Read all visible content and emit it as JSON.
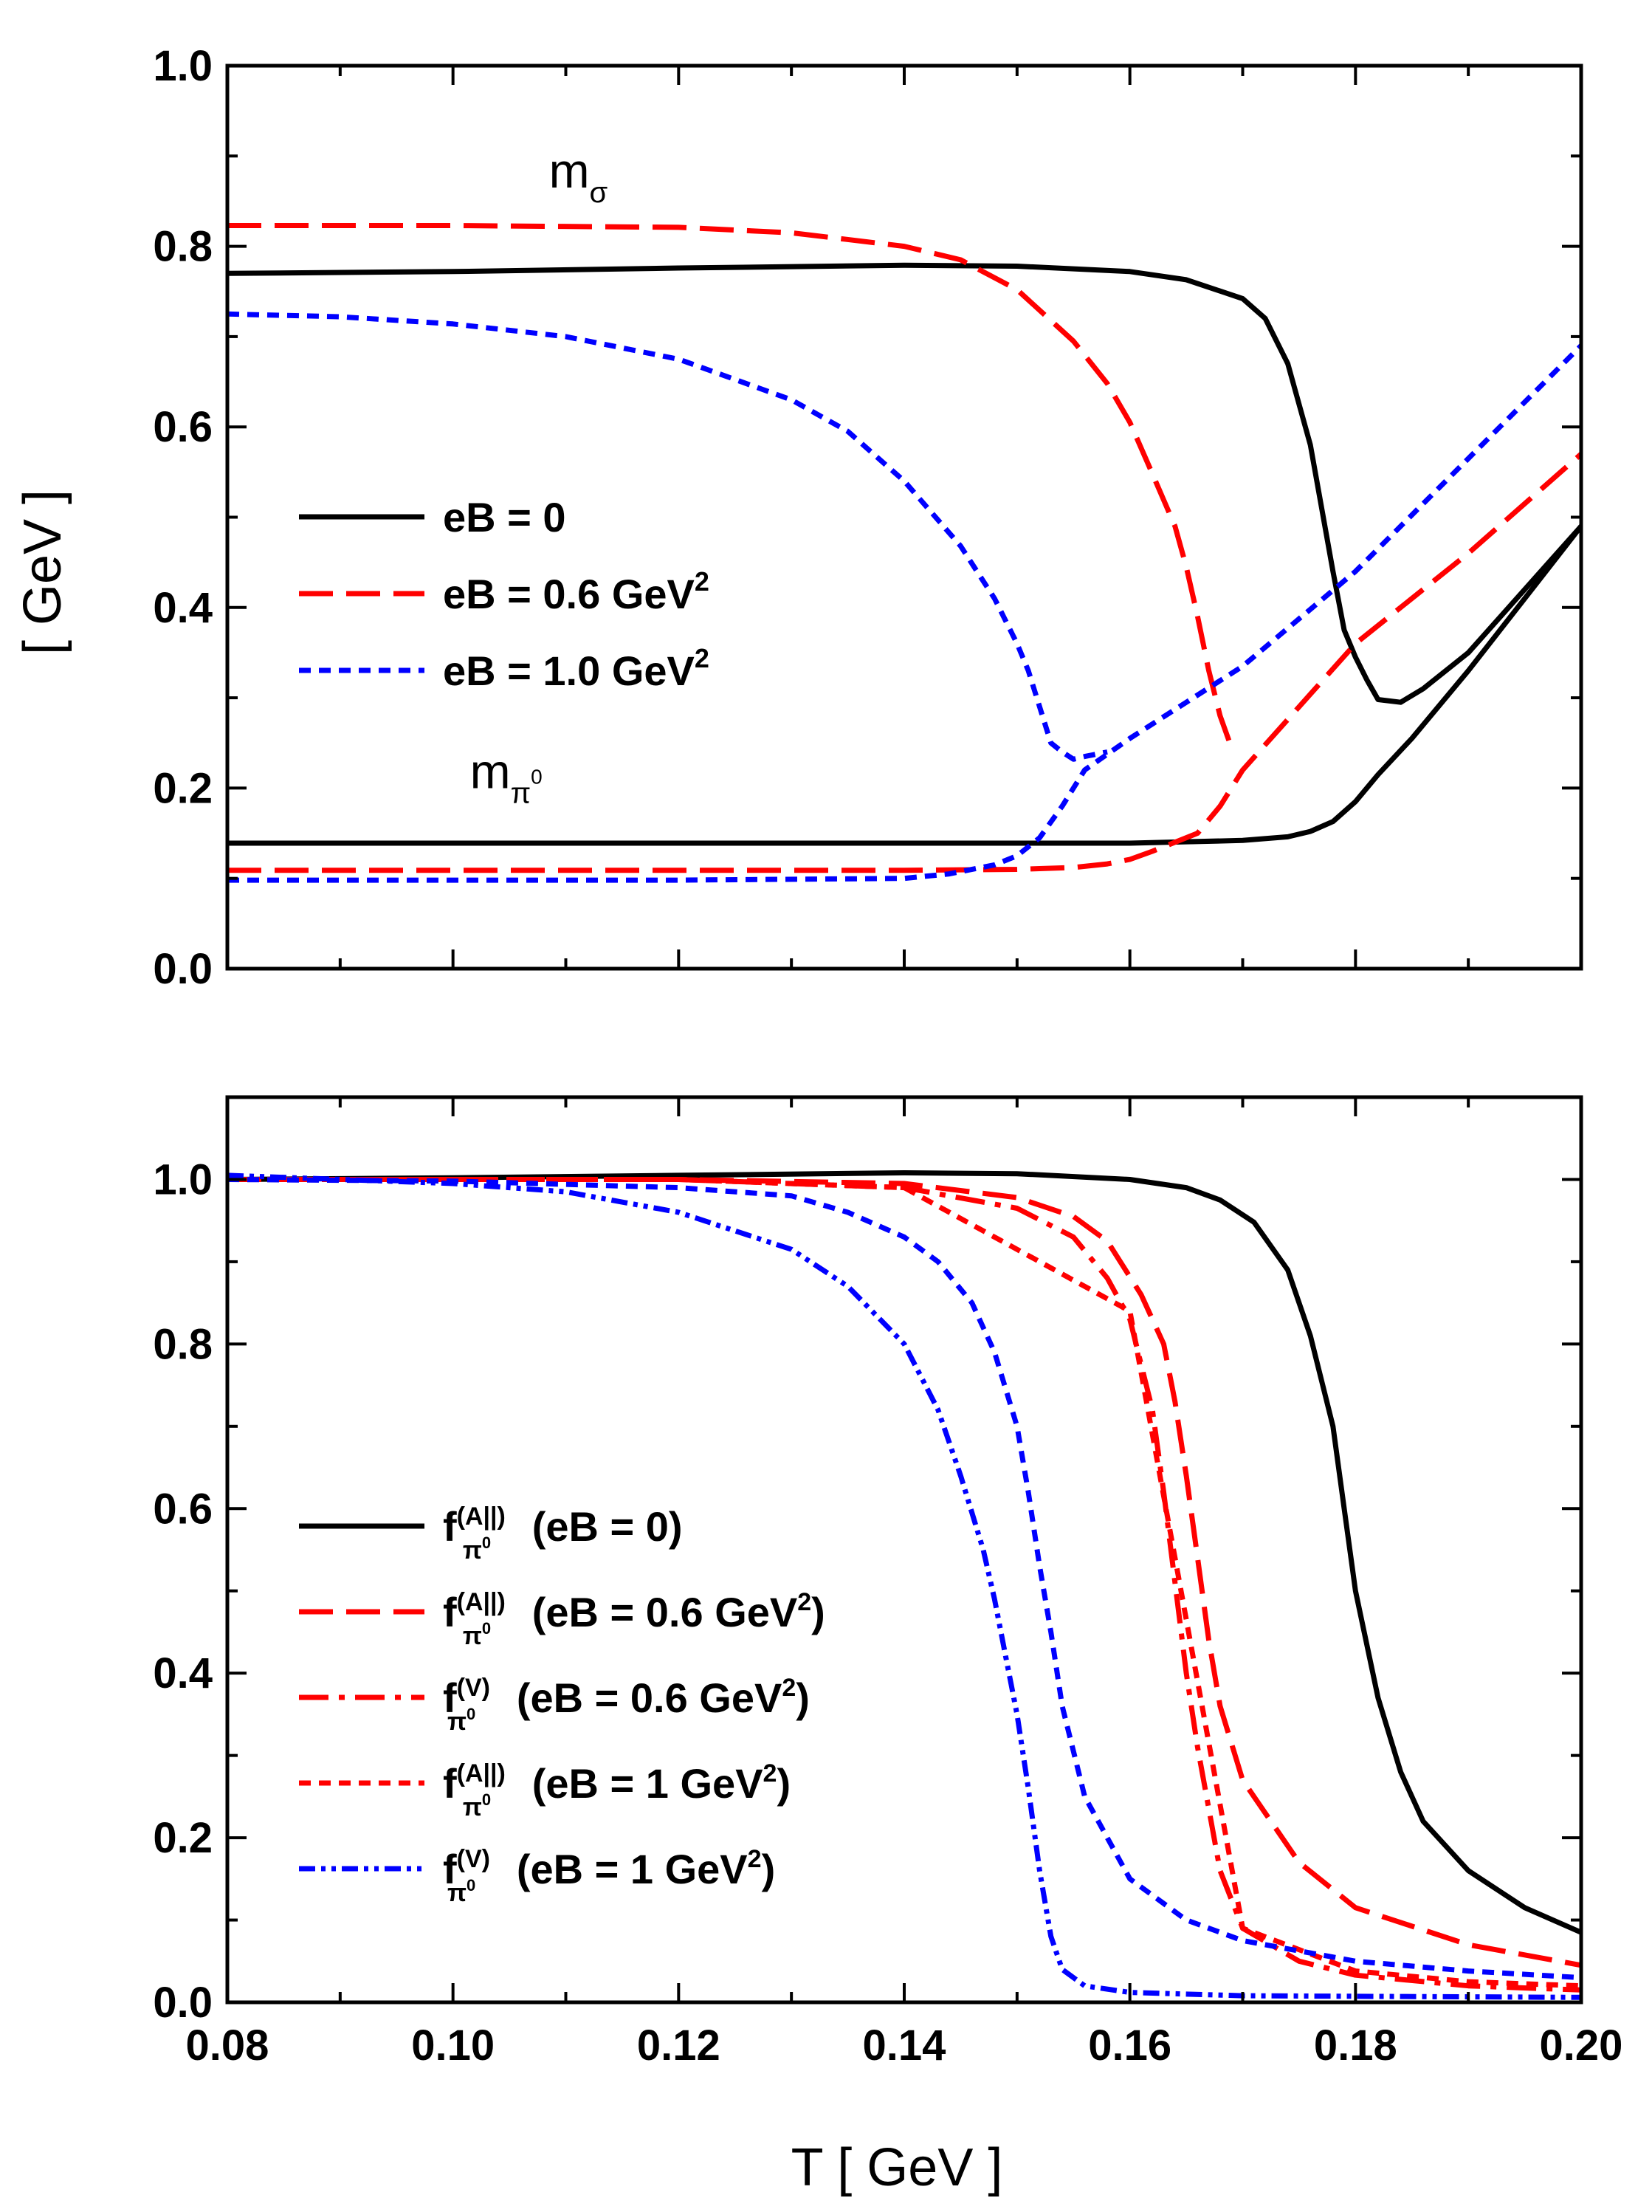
{
  "figure": {
    "xlabel": "T  [ GeV ]",
    "ylabel": "[ GeV ]"
  },
  "styles": {
    "black_solid": {
      "color": "#000000",
      "dash": "solid"
    },
    "red_long_dash": {
      "color": "#ff0000",
      "dash": "long"
    },
    "red_dash_dot": {
      "color": "#ff0000",
      "dash": "dashdot"
    },
    "red_short_dash": {
      "color": "#ff0000",
      "dash": "short"
    },
    "blue_short_dash": {
      "color": "#0000ff",
      "dash": "short"
    },
    "blue_dash_dot_dot": {
      "color": "#0000ff",
      "dash": "dashdotdot"
    }
  },
  "chart_data": [
    {
      "type": "line",
      "panel": "top",
      "xlim": [
        0.08,
        0.2
      ],
      "ylim": [
        0.0,
        1.0
      ],
      "xticks": [
        "0.08",
        "0.10",
        "0.12",
        "0.14",
        "0.16",
        "0.18",
        "0.20"
      ],
      "yticks": [
        "0.0",
        "0.2",
        "0.4",
        "0.6",
        "0.8",
        "1.0"
      ],
      "show_x_tick_labels": false,
      "annotations": [
        {
          "name": "m-sigma-label",
          "base": "m",
          "sub": "σ",
          "x": 0.1085,
          "y": 0.865
        },
        {
          "name": "m-pi0-label",
          "base": "m",
          "sub": "π",
          "sup": "0",
          "x": 0.1015,
          "y": 0.2
        }
      ],
      "legend": [
        {
          "label": "eB = 0",
          "sup": "",
          "style": "black_solid"
        },
        {
          "label": "eB = 0.6 GeV",
          "sup": "2",
          "style": "red_long_dash"
        },
        {
          "label": "eB = 1.0 GeV",
          "sup": "2",
          "style": "blue_short_dash"
        }
      ],
      "series": [
        {
          "name": "m_sigma eB=0",
          "style": "black_solid",
          "x": [
            0.08,
            0.1,
            0.12,
            0.14,
            0.15,
            0.16,
            0.165,
            0.17,
            0.172,
            0.174,
            0.176,
            0.178,
            0.179,
            0.18,
            0.181,
            0.182,
            0.184,
            0.186,
            0.19,
            0.195,
            0.2
          ],
          "y": [
            0.77,
            0.772,
            0.776,
            0.779,
            0.778,
            0.772,
            0.763,
            0.742,
            0.72,
            0.67,
            0.58,
            0.44,
            0.375,
            0.345,
            0.32,
            0.298,
            0.295,
            0.31,
            0.35,
            0.42,
            0.49
          ]
        },
        {
          "name": "m_pi0 eB=0",
          "style": "black_solid",
          "x": [
            0.08,
            0.12,
            0.14,
            0.16,
            0.17,
            0.174,
            0.176,
            0.178,
            0.18,
            0.182,
            0.185,
            0.19,
            0.195,
            0.2
          ],
          "y": [
            0.139,
            0.139,
            0.139,
            0.139,
            0.142,
            0.146,
            0.152,
            0.163,
            0.185,
            0.215,
            0.255,
            0.33,
            0.41,
            0.49
          ]
        },
        {
          "name": "m_sigma eB=0.6",
          "style": "red_long_dash",
          "x": [
            0.08,
            0.1,
            0.12,
            0.13,
            0.14,
            0.145,
            0.15,
            0.155,
            0.158,
            0.16,
            0.162,
            0.164,
            0.165,
            0.166,
            0.167,
            0.168,
            0.169
          ],
          "y": [
            0.823,
            0.823,
            0.821,
            0.815,
            0.8,
            0.785,
            0.752,
            0.695,
            0.648,
            0.605,
            0.548,
            0.49,
            0.445,
            0.39,
            0.33,
            0.28,
            0.245
          ]
        },
        {
          "name": "m_pi0 eB=0.6",
          "style": "red_long_dash",
          "x": [
            0.08,
            0.12,
            0.14,
            0.15,
            0.155,
            0.158,
            0.16,
            0.162,
            0.164,
            0.166,
            0.168,
            0.17,
            0.175,
            0.18,
            0.19,
            0.2
          ],
          "y": [
            0.109,
            0.109,
            0.109,
            0.11,
            0.112,
            0.116,
            0.121,
            0.13,
            0.14,
            0.15,
            0.18,
            0.22,
            0.29,
            0.36,
            0.46,
            0.57
          ]
        },
        {
          "name": "m_sigma eB=1.0",
          "style": "blue_short_dash",
          "x": [
            0.08,
            0.09,
            0.1,
            0.11,
            0.12,
            0.13,
            0.135,
            0.14,
            0.145,
            0.148,
            0.15,
            0.151,
            0.152,
            0.153,
            0.154,
            0.155,
            0.156,
            0.158
          ],
          "y": [
            0.725,
            0.722,
            0.714,
            0.7,
            0.675,
            0.63,
            0.595,
            0.54,
            0.468,
            0.41,
            0.36,
            0.33,
            0.29,
            0.25,
            0.24,
            0.232,
            0.235,
            0.24
          ]
        },
        {
          "name": "m_pi0 eB=1.0",
          "style": "blue_short_dash",
          "x": [
            0.08,
            0.12,
            0.14,
            0.144,
            0.148,
            0.15,
            0.152,
            0.154,
            0.156,
            0.16,
            0.17,
            0.18,
            0.19,
            0.2
          ],
          "y": [
            0.098,
            0.098,
            0.1,
            0.105,
            0.115,
            0.125,
            0.145,
            0.18,
            0.22,
            0.255,
            0.335,
            0.44,
            0.565,
            0.69
          ]
        }
      ]
    },
    {
      "type": "line",
      "panel": "bottom",
      "xlim": [
        0.08,
        0.2
      ],
      "ylim": [
        0.0,
        1.1
      ],
      "xticks": [
        "0.08",
        "0.10",
        "0.12",
        "0.14",
        "0.16",
        "0.18",
        "0.20"
      ],
      "yticks": [
        "0.0",
        "0.2",
        "0.4",
        "0.6",
        "0.8",
        "1.0"
      ],
      "show_x_tick_labels": true,
      "legend": [
        {
          "base": "f",
          "sub": "π",
          "subsup": "0",
          "sup": "(A||)",
          "label": " (eB = 0)",
          "tailsup": "",
          "tail": "",
          "style": "black_solid"
        },
        {
          "base": "f",
          "sub": "π",
          "subsup": "0",
          "sup": "(A||)",
          "label": " (eB = 0.6 GeV",
          "tailsup": "2",
          "tail": ")",
          "style": "red_long_dash"
        },
        {
          "base": "f",
          "sub": "π",
          "subsup": "0",
          "sup": "(V)",
          "label": " (eB = 0.6 GeV",
          "tailsup": "2",
          "tail": ")",
          "style": "red_dash_dot"
        },
        {
          "base": "f",
          "sub": "π",
          "subsup": "0",
          "sup": "(A||)",
          "label": " (eB = 1 GeV",
          "tailsup": "2",
          "tail": ")",
          "style": "red_short_dash"
        },
        {
          "base": "f",
          "sub": "π",
          "subsup": "0",
          "sup": "(V)",
          "label": " (eB = 1 GeV",
          "tailsup": "2",
          "tail": ")",
          "style": "blue_dash_dot_dot"
        }
      ],
      "series": [
        {
          "name": "f_A eB=0",
          "style": "black_solid",
          "x": [
            0.08,
            0.1,
            0.12,
            0.14,
            0.15,
            0.16,
            0.165,
            0.168,
            0.171,
            0.174,
            0.176,
            0.178,
            0.179,
            0.18,
            0.182,
            0.184,
            0.186,
            0.19,
            0.195,
            0.2
          ],
          "y": [
            1.0,
            1.002,
            1.005,
            1.008,
            1.007,
            1.0,
            0.99,
            0.975,
            0.948,
            0.89,
            0.81,
            0.7,
            0.6,
            0.5,
            0.37,
            0.28,
            0.22,
            0.16,
            0.115,
            0.085
          ]
        },
        {
          "name": "f_A eB=0.6",
          "style": "red_long_dash",
          "x": [
            0.08,
            0.12,
            0.14,
            0.15,
            0.155,
            0.158,
            0.161,
            0.163,
            0.164,
            0.165,
            0.166,
            0.167,
            0.168,
            0.17,
            0.175,
            0.18,
            0.19,
            0.2
          ],
          "y": [
            1.0,
            1.0,
            0.995,
            0.978,
            0.955,
            0.925,
            0.86,
            0.8,
            0.73,
            0.64,
            0.54,
            0.44,
            0.36,
            0.27,
            0.17,
            0.115,
            0.07,
            0.045
          ]
        },
        {
          "name": "f_V eB=0.6",
          "style": "red_dash_dot",
          "x": [
            0.08,
            0.12,
            0.14,
            0.15,
            0.155,
            0.158,
            0.16,
            0.162,
            0.163,
            0.164,
            0.165,
            0.166,
            0.168,
            0.17,
            0.175,
            0.18,
            0.19,
            0.2
          ],
          "y": [
            1.0,
            1.0,
            0.99,
            0.965,
            0.93,
            0.88,
            0.83,
            0.72,
            0.62,
            0.51,
            0.4,
            0.31,
            0.16,
            0.09,
            0.05,
            0.033,
            0.02,
            0.015
          ]
        },
        {
          "name": "f_A eB=1",
          "style": "red_short_dash",
          "x": [
            0.08,
            0.12,
            0.14,
            0.16,
            0.17,
            0.18,
            0.19,
            0.2
          ],
          "y": [
            1.0,
            1.0,
            0.99,
            0.84,
            0.09,
            0.038,
            0.025,
            0.02
          ]
        },
        {
          "name": "f_A eB=1 (blue)",
          "style": "blue_short_dash",
          "x": [
            0.08,
            0.1,
            0.12,
            0.13,
            0.135,
            0.14,
            0.143,
            0.146,
            0.148,
            0.15,
            0.151,
            0.152,
            0.153,
            0.154,
            0.156,
            0.16,
            0.165,
            0.17,
            0.18,
            0.19,
            0.2
          ],
          "y": [
            1.0,
            0.998,
            0.99,
            0.98,
            0.96,
            0.93,
            0.9,
            0.85,
            0.79,
            0.7,
            0.62,
            0.53,
            0.45,
            0.36,
            0.25,
            0.15,
            0.1,
            0.075,
            0.05,
            0.038,
            0.03
          ]
        },
        {
          "name": "f_V eB=1",
          "style": "blue_dash_dot_dot",
          "x": [
            0.08,
            0.1,
            0.11,
            0.12,
            0.13,
            0.135,
            0.14,
            0.143,
            0.145,
            0.147,
            0.148,
            0.149,
            0.15,
            0.151,
            0.152,
            0.153,
            0.154,
            0.156,
            0.16,
            0.17,
            0.2
          ],
          "y": [
            1.005,
            0.995,
            0.985,
            0.96,
            0.915,
            0.87,
            0.8,
            0.72,
            0.64,
            0.55,
            0.49,
            0.42,
            0.35,
            0.26,
            0.16,
            0.08,
            0.04,
            0.02,
            0.012,
            0.008,
            0.006
          ]
        }
      ]
    }
  ]
}
